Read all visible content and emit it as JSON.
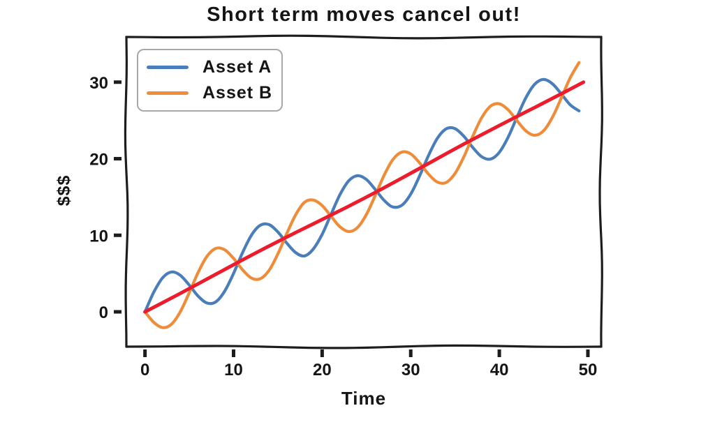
{
  "figure": {
    "title": "Short term moves cancel out!",
    "xlabel": "Time",
    "ylabel": "$$$"
  },
  "chart_data": {
    "type": "line",
    "title": "Short term moves cancel out!",
    "xlabel": "Time",
    "ylabel": "$$$",
    "xlim": [
      -2.1,
      51.5
    ],
    "ylim": [
      -4.55,
      35.9
    ],
    "xticks": [
      0,
      10,
      20,
      30,
      40,
      50
    ],
    "yticks": [
      0,
      10,
      20,
      30
    ],
    "grid": false,
    "legend_position": "upper left",
    "style": "xkcd-sketch",
    "frame_color": "#1d1d1d",
    "x": [
      0,
      1,
      2,
      3,
      4,
      5,
      6,
      7,
      8,
      9,
      10,
      11,
      12,
      13,
      14,
      15,
      16,
      17,
      18,
      19,
      20,
      21,
      22,
      23,
      24,
      25,
      26,
      27,
      28,
      29,
      30,
      31,
      32,
      33,
      34,
      35,
      36,
      37,
      38,
      39,
      40,
      41,
      42,
      43,
      44,
      45,
      46,
      47,
      48,
      49
    ],
    "series": [
      {
        "name": "Asset A",
        "color": "#4a7ebb",
        "line_width": 4.2,
        "values": [
          0,
          2.58,
          4.46,
          5.21,
          4.76,
          3.49,
          2.05,
          1.15,
          1.31,
          2.7,
          5.02,
          7.69,
          9.98,
          11.29,
          11.39,
          10.44,
          8.99,
          7.75,
          7.3,
          8.2,
          10.12,
          12.72,
          15.28,
          17.11,
          17.78,
          17.28,
          15.98,
          14.55,
          13.69,
          13.93,
          15.37,
          17.74,
          20.4,
          22.65,
          23.9,
          23.93,
          22.93,
          21.47,
          20.27,
          19.95,
          20.83,
          22.82,
          25.44,
          27.97,
          29.74,
          30.35,
          29.78,
          28.46,
          27.04,
          26.24
        ]
      },
      {
        "name": "Asset B",
        "color": "#ef8c39",
        "line_width": 4.2,
        "values": [
          0,
          -1.38,
          -2.06,
          -1.61,
          0.04,
          2.51,
          5.15,
          7.25,
          8.29,
          8.1,
          6.98,
          5.51,
          4.42,
          4.31,
          5.41,
          7.56,
          10.21,
          12.65,
          14.3,
          14.6,
          13.88,
          12.48,
          11.12,
          10.49,
          11.02,
          12.72,
          15.22,
          17.85,
          19.91,
          20.87,
          20.63,
          19.46,
          18,
          16.95,
          16.9,
          18.07,
          20.27,
          22.93,
          25.33,
          26.85,
          27.17,
          26.38,
          24.96,
          23.63,
          23.06,
          23.65,
          25.42,
          27.94,
          30.56,
          32.56
        ]
      }
    ],
    "trend_line": {
      "description": "straight red trend line, no legend entry",
      "color": "#ec1c2d",
      "line_width": 5,
      "x": [
        0,
        49.5
      ],
      "values": [
        0,
        30
      ]
    }
  }
}
